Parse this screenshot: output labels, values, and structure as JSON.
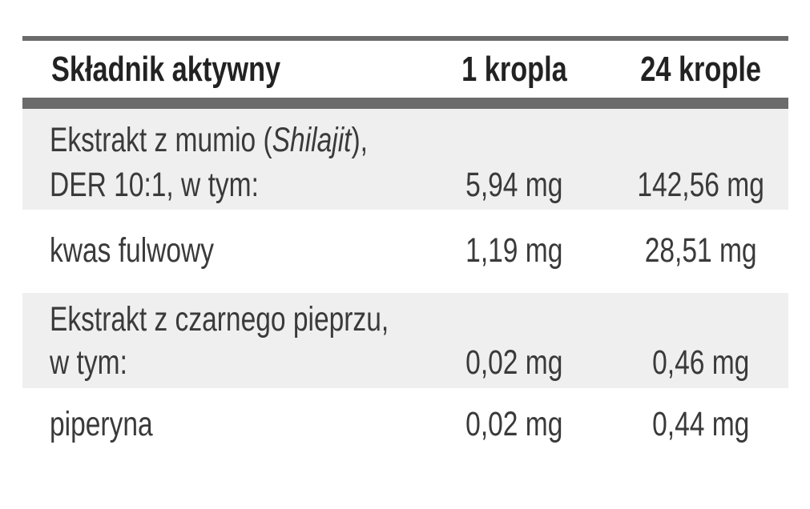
{
  "table": {
    "header": [
      "Składnik aktywny",
      "1 kropla",
      "24 krople"
    ],
    "rows": [
      {
        "label": [
          "Ekstrakt z mumio (",
          "Shilajit",
          "),",
          "DER 10:1, w tym:"
        ],
        "one_drop": "5,94 mg",
        "drops_24": "142,56 mg"
      },
      {
        "label": [
          "kwas fulwowy"
        ],
        "one_drop": "1,19 mg",
        "drops_24": "28,51 mg"
      },
      {
        "label": [
          "Ekstrakt z czarnego pieprzu,",
          "w tym:"
        ],
        "one_drop": "0,02 mg",
        "drops_24": "0,46 mg"
      },
      {
        "label": [
          "piperyna"
        ],
        "one_drop": "0,02 mg",
        "drops_24": "0,44 mg"
      }
    ]
  }
}
